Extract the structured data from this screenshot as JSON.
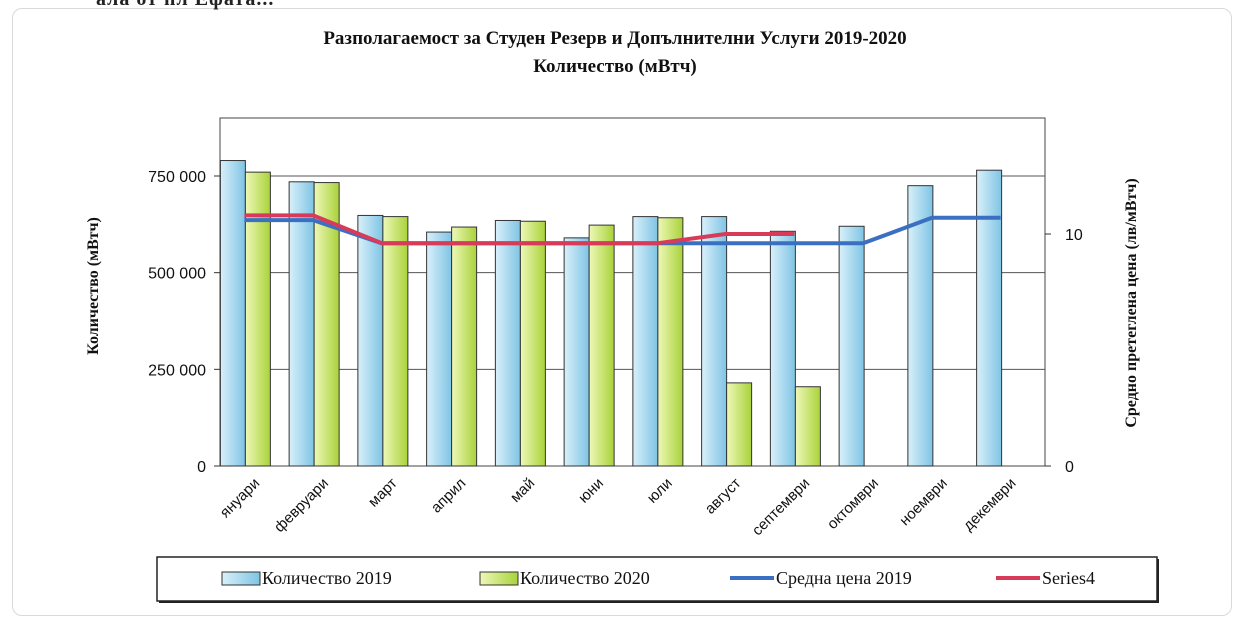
{
  "chart_data": {
    "type": "bar",
    "title": "Разполагаемост за Студен Резерв и Допълнителни Услуги 2019-2020",
    "subtitle": "Количество (мВтч)",
    "ylabel": "Количество (мВтч)",
    "y2label": "Средно претеглена цена (лв/мВтч)",
    "ylim": [
      0,
      900000
    ],
    "y_ticks": [
      0,
      250000,
      500000,
      750000
    ],
    "y_tick_labels": [
      "0",
      "250 000",
      "500 000",
      "750 000"
    ],
    "y2lim": [
      0,
      15
    ],
    "y2_ticks": [
      0,
      10
    ],
    "y2_tick_labels": [
      "0",
      "10"
    ],
    "categories": [
      "януари",
      "февруари",
      "март",
      "април",
      "май",
      "юни",
      "юли",
      "август",
      "септември",
      "октомври",
      "ноември",
      "декември"
    ],
    "series": [
      {
        "name": "Количество 2019",
        "kind": "bar",
        "axis": "left",
        "color": "#9fd3ea",
        "values": [
          790000,
          735000,
          648000,
          605000,
          635000,
          590000,
          645000,
          645000,
          607000,
          620000,
          725000,
          765000
        ]
      },
      {
        "name": "Количество 2020",
        "kind": "bar",
        "axis": "left",
        "color": "#bfe05a",
        "values": [
          760000,
          733000,
          645000,
          618000,
          633000,
          623000,
          642000,
          215000,
          205000,
          null,
          null,
          null
        ]
      },
      {
        "name": "Средна цена 2019",
        "kind": "line",
        "axis": "right",
        "color": "#3a6fc2",
        "values": [
          10.6,
          10.6,
          9.6,
          9.6,
          9.6,
          9.6,
          9.6,
          9.6,
          9.6,
          9.6,
          10.7,
          10.7
        ]
      },
      {
        "name": "Series4",
        "kind": "line",
        "axis": "right",
        "color": "#d83a5a",
        "values": [
          10.8,
          10.8,
          9.6,
          9.6,
          9.6,
          9.6,
          9.6,
          10.0,
          10.0,
          null,
          null,
          null
        ]
      }
    ],
    "grid": true,
    "legend_position": "bottom"
  },
  "top_cropped_text": "ала от пл Ефата..."
}
